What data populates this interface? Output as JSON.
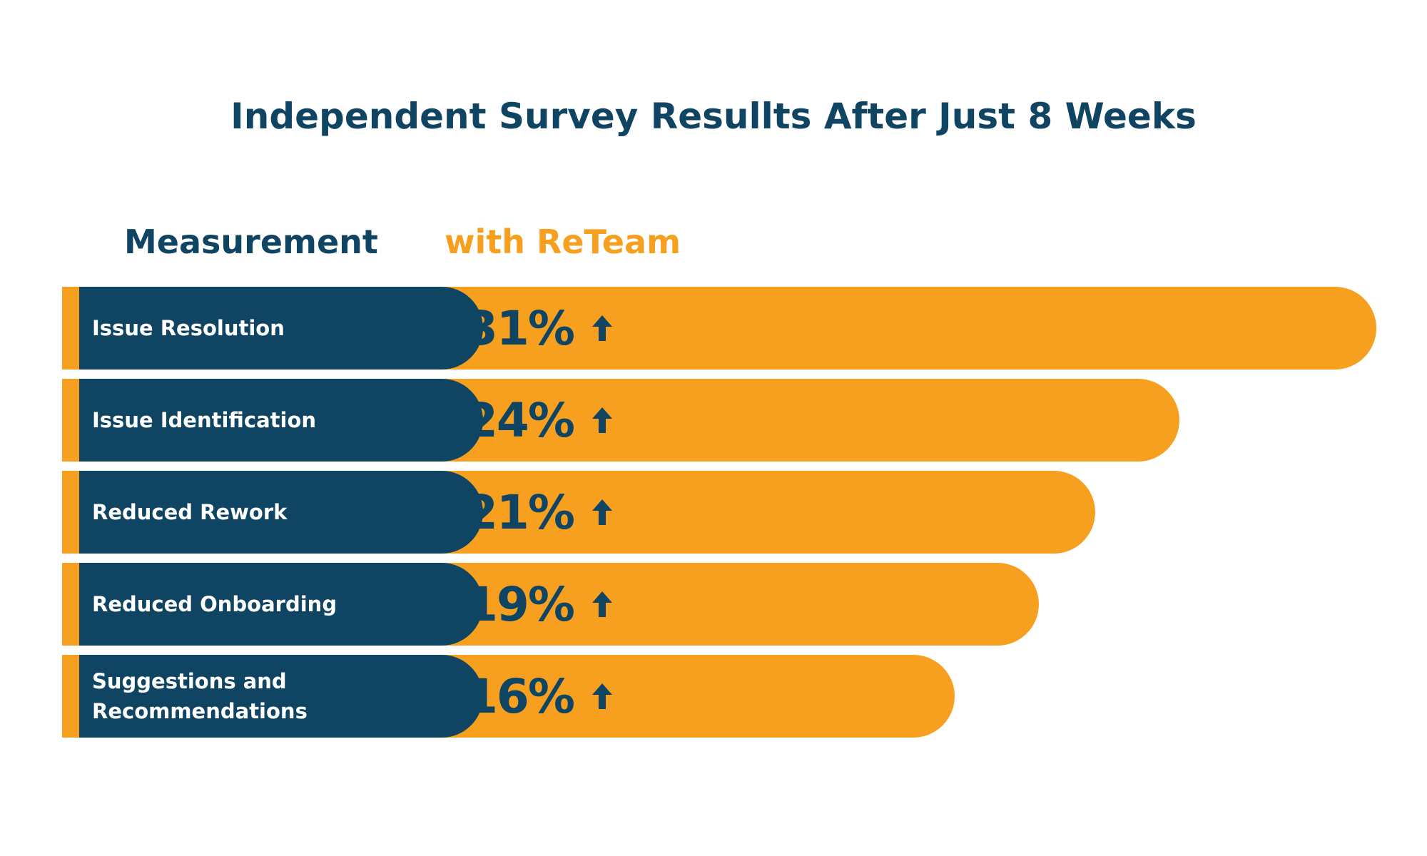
{
  "chart_data": {
    "type": "bar",
    "orientation": "horizontal",
    "title": "Independent Survey Resullts After Just 8 Weeks",
    "headers": {
      "category": "Measurement",
      "value": "with ReTeam"
    },
    "categories": [
      "Issue Resolution",
      "Issue Identification",
      "Reduced Rework",
      "Reduced Onboarding",
      "Suggestions and Recommendations"
    ],
    "values": [
      31,
      24,
      21,
      19,
      16
    ],
    "value_labels": [
      "31%",
      "24%",
      "21%",
      "19%",
      "16%"
    ],
    "unit": "%",
    "direction_icon": "arrow-up-icon",
    "colors": {
      "bar": "#f7a01f",
      "label_block": "#0f4563",
      "title": "#0f4563",
      "value_text": "#0f4563",
      "label_text": "#ffffff"
    }
  }
}
